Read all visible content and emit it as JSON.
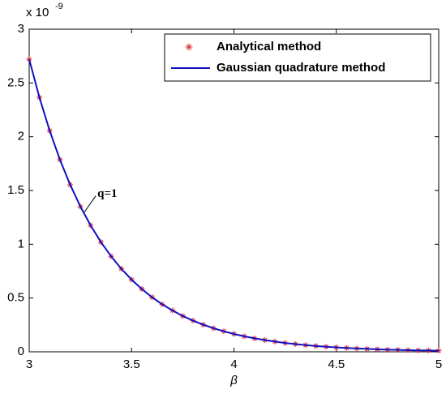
{
  "chart_data": {
    "type": "line",
    "xlabel": "β",
    "y_multiplier": {
      "base": "x 10",
      "exponent": "-9"
    },
    "x": [
      3,
      3.05,
      3.1,
      3.15,
      3.2,
      3.25,
      3.3,
      3.35,
      3.4,
      3.45,
      3.5,
      3.55,
      3.6,
      3.65,
      3.7,
      3.75,
      3.8,
      3.85,
      3.9,
      3.95,
      4,
      4.05,
      4.1,
      4.15,
      4.2,
      4.25,
      4.3,
      4.35,
      4.4,
      4.45,
      4.5,
      4.55,
      4.6,
      4.65,
      4.7,
      4.75,
      4.8,
      4.85,
      4.9,
      4.95,
      5
    ],
    "series": [
      {
        "name": "Analytical method",
        "color": "#e0303a",
        "marker": "star",
        "values": [
          2.72,
          2.365,
          2.056,
          1.787,
          1.554,
          1.351,
          1.175,
          1.021,
          0.888,
          0.772,
          0.671,
          0.584,
          0.507,
          0.441,
          0.384,
          0.333,
          0.29,
          0.252,
          0.219,
          0.191,
          0.166,
          0.144,
          0.125,
          0.109,
          0.095,
          0.082,
          0.072,
          0.062,
          0.054,
          0.047,
          0.041,
          0.036,
          0.031,
          0.027,
          0.023,
          0.02,
          0.018,
          0.015,
          0.013,
          0.012,
          0.01
        ]
      },
      {
        "name": "Gaussian quadrature method",
        "color": "#1010c0",
        "marker": "line",
        "values": [
          2.72,
          2.365,
          2.056,
          1.787,
          1.554,
          1.351,
          1.175,
          1.021,
          0.888,
          0.772,
          0.671,
          0.584,
          0.507,
          0.441,
          0.384,
          0.333,
          0.29,
          0.252,
          0.219,
          0.191,
          0.166,
          0.144,
          0.125,
          0.109,
          0.095,
          0.082,
          0.072,
          0.062,
          0.054,
          0.047,
          0.041,
          0.036,
          0.031,
          0.027,
          0.023,
          0.02,
          0.018,
          0.015,
          0.013,
          0.012,
          0.01
        ]
      }
    ],
    "xlim": [
      3,
      5
    ],
    "xticks": [
      3,
      3.5,
      4,
      4.5,
      5
    ],
    "ylim": [
      0,
      3
    ],
    "yticks": [
      0,
      0.5,
      1,
      1.5,
      2,
      2.5,
      3
    ],
    "legend": "top-right",
    "annotation": {
      "text": "q=1",
      "x": 3.27,
      "y": 1.3
    }
  }
}
